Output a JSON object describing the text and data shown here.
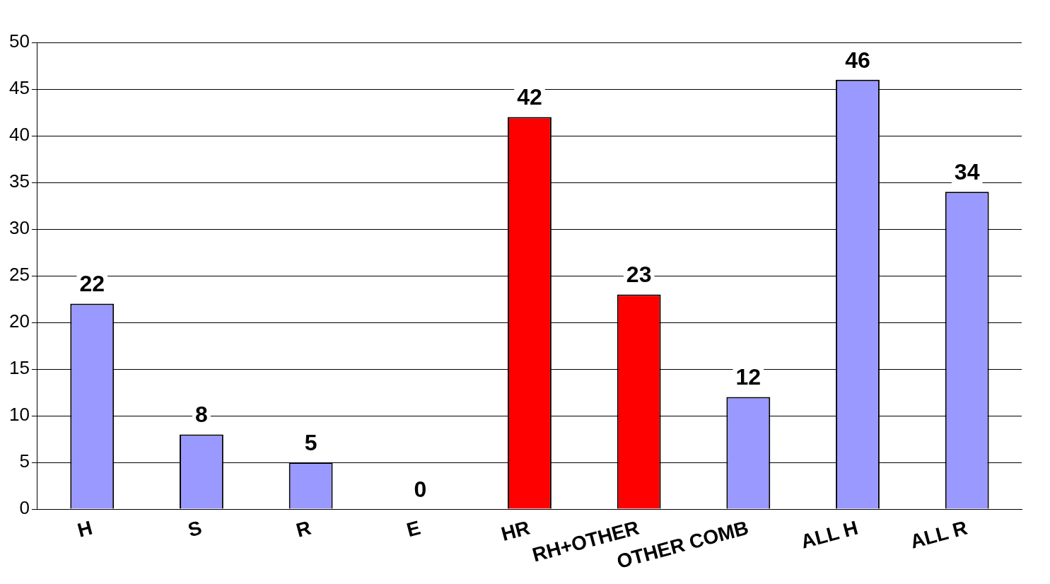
{
  "chart_data": {
    "type": "bar",
    "categories": [
      "H",
      "S",
      "R",
      "E",
      "HR",
      "RH+OTHER",
      "OTHER COMB",
      "ALL H",
      "ALL R"
    ],
    "values": [
      22,
      8,
      5,
      0,
      42,
      23,
      12,
      46,
      34
    ],
    "colors": [
      "#9999ff",
      "#9999ff",
      "#9999ff",
      "#9999ff",
      "#ff0000",
      "#ff0000",
      "#9999ff",
      "#9999ff",
      "#9999ff"
    ],
    "ylim": [
      0,
      50
    ],
    "yticks": [
      0,
      5,
      10,
      15,
      20,
      25,
      30,
      35,
      40,
      45,
      50
    ],
    "grid": "y",
    "data_labels": true,
    "legend": false
  }
}
